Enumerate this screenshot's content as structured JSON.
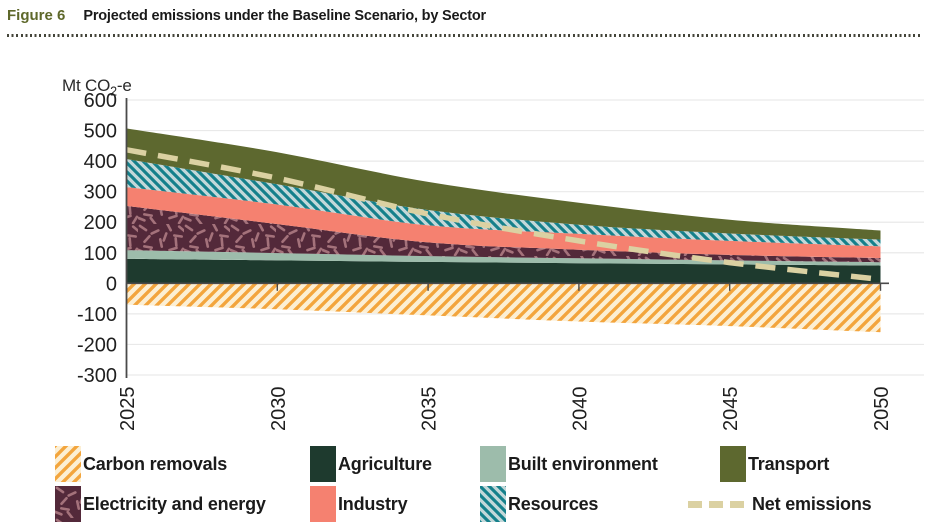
{
  "figure": {
    "label": "Figure 6",
    "title": "Projected emissions under the Baseline Scenario, by Sector"
  },
  "y_axis": {
    "unit_prefix": "Mt CO",
    "unit_sub": "2",
    "unit_suffix": "-e",
    "ticks": [
      600,
      500,
      400,
      300,
      200,
      100,
      0,
      -100,
      -200,
      -300
    ]
  },
  "x_axis": {
    "years": [
      2025,
      2030,
      2035,
      2040,
      2045,
      2050
    ]
  },
  "colors": {
    "figure_label": "#5e682a",
    "title_text": "#1a1a1a",
    "dotted_rule": "#44453a",
    "axis_line": "#4a4a4a",
    "gridline": "#e9e9e9",
    "tick_text": "#1f1f1f",
    "carbon_removals_bg": "#fcefd4",
    "carbon_removals_stripe": "#f3a53d",
    "agriculture": "#1e3a2e",
    "built_environment": "#9dbcab",
    "electricity_bg": "#53293a",
    "electricity_speckle": "#a4727b",
    "industry": "#f58170",
    "resources_bg": "#c3d8d9",
    "resources_stripe": "#15808b",
    "transport": "#5d682f",
    "net_emissions": "#dbd1a2"
  },
  "legend": {
    "rows": [
      [
        {
          "label": "Carbon removals",
          "fill": "pattern:removals"
        },
        {
          "label": "Agriculture",
          "fill": "solid:agriculture"
        },
        {
          "label": "Built environment",
          "fill": "solid:built_environment"
        },
        {
          "label": "Transport",
          "fill": "solid:transport"
        }
      ],
      [
        {
          "label": "Electricity and energy",
          "fill": "pattern:electricity"
        },
        {
          "label": "Industry",
          "fill": "solid:industry"
        },
        {
          "label": "Resources",
          "fill": "pattern:resources"
        },
        {
          "label": "Net emissions",
          "fill": "line:net_emissions"
        }
      ]
    ]
  },
  "chart_data": {
    "type": "area",
    "stacked": true,
    "title": "Projected emissions under the Baseline Scenario, by Sector",
    "xlabel": "",
    "ylabel": "Mt CO2-e",
    "x": [
      2025,
      2030,
      2035,
      2040,
      2045,
      2050
    ],
    "ylim": [
      -300,
      600
    ],
    "grid": true,
    "legend_position": "bottom",
    "series": [
      {
        "name": "Carbon removals",
        "fill": "pattern:removals",
        "values": [
          -70,
          -85,
          -105,
          -125,
          -140,
          -160
        ]
      },
      {
        "name": "Agriculture",
        "fill": "solid:agriculture",
        "values": [
          80,
          75,
          70,
          66,
          62,
          58
        ]
      },
      {
        "name": "Built environment",
        "fill": "solid:built_environment",
        "values": [
          28,
          24,
          19,
          16,
          13,
          11
        ]
      },
      {
        "name": "Electricity and energy",
        "fill": "pattern:electricity",
        "values": [
          145,
          95,
          45,
          28,
          18,
          14
        ]
      },
      {
        "name": "Industry",
        "fill": "solid:industry",
        "values": [
          62,
          64,
          56,
          52,
          46,
          38
        ]
      },
      {
        "name": "Resources",
        "fill": "pattern:resources",
        "values": [
          92,
          66,
          50,
          30,
          24,
          22
        ]
      },
      {
        "name": "Transport",
        "fill": "solid:transport",
        "values": [
          100,
          105,
          92,
          72,
          45,
          30
        ]
      },
      {
        "name": "Net emissions",
        "type": "line",
        "fill": "line:net_emissions",
        "values": [
          437,
          344,
          227,
          139,
          68,
          13
        ]
      }
    ]
  }
}
